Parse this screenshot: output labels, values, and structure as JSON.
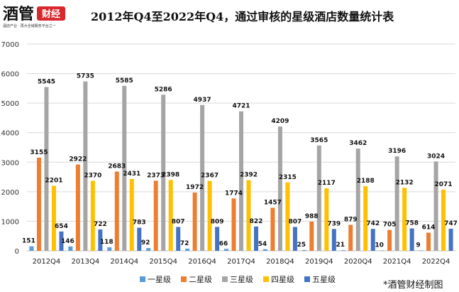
{
  "logo": {
    "brand": "酒管",
    "badge": "财经",
    "tagline": "酒店产业 · 再大全域服务平台之一"
  },
  "source_note": "*酒管财经制图",
  "colors": {
    "一星级": "#5b9bd5",
    "二星级": "#ed7d31",
    "三星级": "#a5a5a5",
    "四星级": "#ffc000",
    "五星级": "#4472c4",
    "logo_red": "#d8272d",
    "grid": "#d9d9d9"
  },
  "chart_data": {
    "type": "bar",
    "title": "2012年Q4至2022年Q4，通过审核的星级酒店数量统计表",
    "xlabel": "",
    "ylabel": "",
    "ylim": [
      0,
      7000
    ],
    "yticks": [
      0,
      1000,
      2000,
      3000,
      4000,
      5000,
      6000,
      7000
    ],
    "grid": true,
    "legend_position": "bottom",
    "categories": [
      "2012Q4",
      "2013Q4",
      "2014Q4",
      "2015Q4",
      "2016Q4",
      "2017Q4",
      "2018Q4",
      "2019Q4",
      "2020Q4",
      "2021Q4",
      "2022Q4"
    ],
    "series": [
      {
        "name": "一星级",
        "values": [
          151,
          146,
          118,
          92,
          72,
          66,
          54,
          25,
          21,
          10,
          9
        ]
      },
      {
        "name": "二星级",
        "values": [
          3155,
          2922,
          2683,
          2373,
          1972,
          1774,
          1457,
          988,
          879,
          705,
          614
        ]
      },
      {
        "name": "三星级",
        "values": [
          5545,
          5735,
          5585,
          5286,
          4937,
          4721,
          4209,
          3565,
          3462,
          3196,
          3024
        ]
      },
      {
        "name": "四星级",
        "values": [
          2201,
          2370,
          2431,
          2398,
          2367,
          2392,
          2315,
          2117,
          2188,
          2132,
          2071
        ]
      },
      {
        "name": "五星级",
        "values": [
          654,
          722,
          783,
          807,
          809,
          822,
          807,
          739,
          742,
          758,
          747
        ]
      }
    ]
  }
}
